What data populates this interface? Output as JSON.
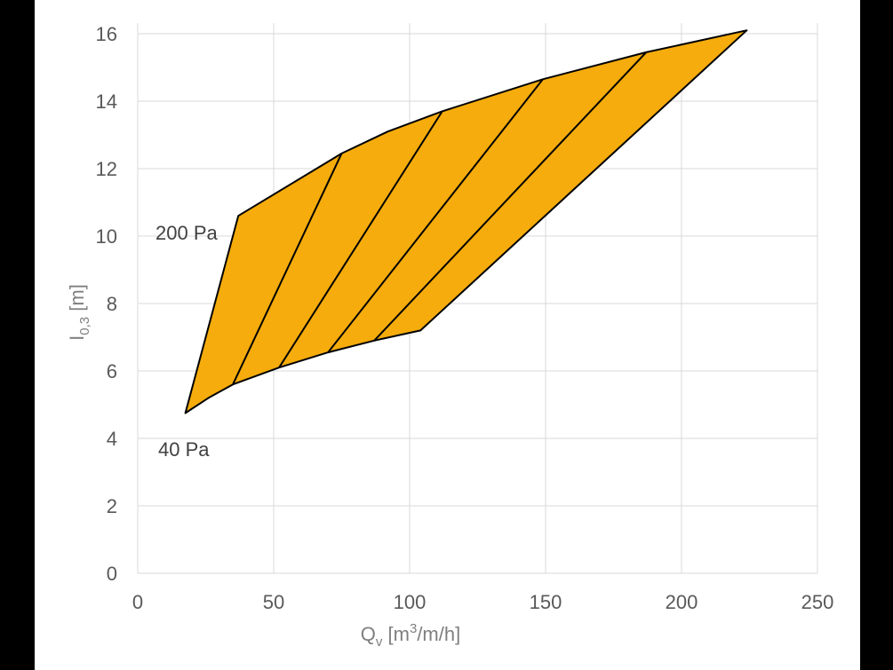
{
  "chart_data": {
    "type": "area",
    "xlabel": {
      "main": "Q",
      "sub": "v",
      "unit_pre": " [m",
      "sup": "3",
      "unit_post": "/m/h]"
    },
    "ylabel": {
      "main": "I",
      "sub": "0,3",
      "unit": " [m]"
    },
    "xlim": [
      0,
      250
    ],
    "ylim": [
      0,
      17
    ],
    "xticks": [
      0,
      50,
      100,
      150,
      200,
      250
    ],
    "yticks": [
      0,
      2,
      4,
      6,
      8,
      10,
      12,
      14,
      16
    ],
    "grid": true,
    "fill_color": "#F5AC0C",
    "stroke_color": "#000000",
    "grid_color": "#D9D9D9",
    "boundary": {
      "lower": [
        [
          17.5,
          4.75
        ],
        [
          26,
          5.2
        ],
        [
          35,
          5.6
        ],
        [
          52,
          6.1
        ],
        [
          70,
          6.55
        ],
        [
          87,
          6.9
        ],
        [
          104,
          7.2
        ]
      ],
      "right": [
        [
          104,
          7.2
        ],
        [
          224,
          16.1
        ]
      ],
      "upper": [
        [
          224,
          16.1
        ],
        [
          187,
          15.45
        ],
        [
          149,
          14.65
        ],
        [
          112,
          13.7
        ],
        [
          92,
          13.1
        ],
        [
          75,
          12.45
        ],
        [
          37,
          10.6
        ]
      ],
      "left": [
        [
          37,
          10.6
        ],
        [
          17.5,
          4.75
        ]
      ]
    },
    "pressure_lines": [
      {
        "from": [
          35,
          5.6
        ],
        "to": [
          75,
          12.45
        ]
      },
      {
        "from": [
          52,
          6.1
        ],
        "to": [
          112,
          13.7
        ]
      },
      {
        "from": [
          70,
          6.55
        ],
        "to": [
          149,
          14.65
        ]
      },
      {
        "from": [
          87,
          6.9
        ],
        "to": [
          187,
          15.45
        ]
      }
    ],
    "annotations": [
      {
        "text": "200 Pa"
      },
      {
        "text": "40 Pa"
      }
    ]
  }
}
